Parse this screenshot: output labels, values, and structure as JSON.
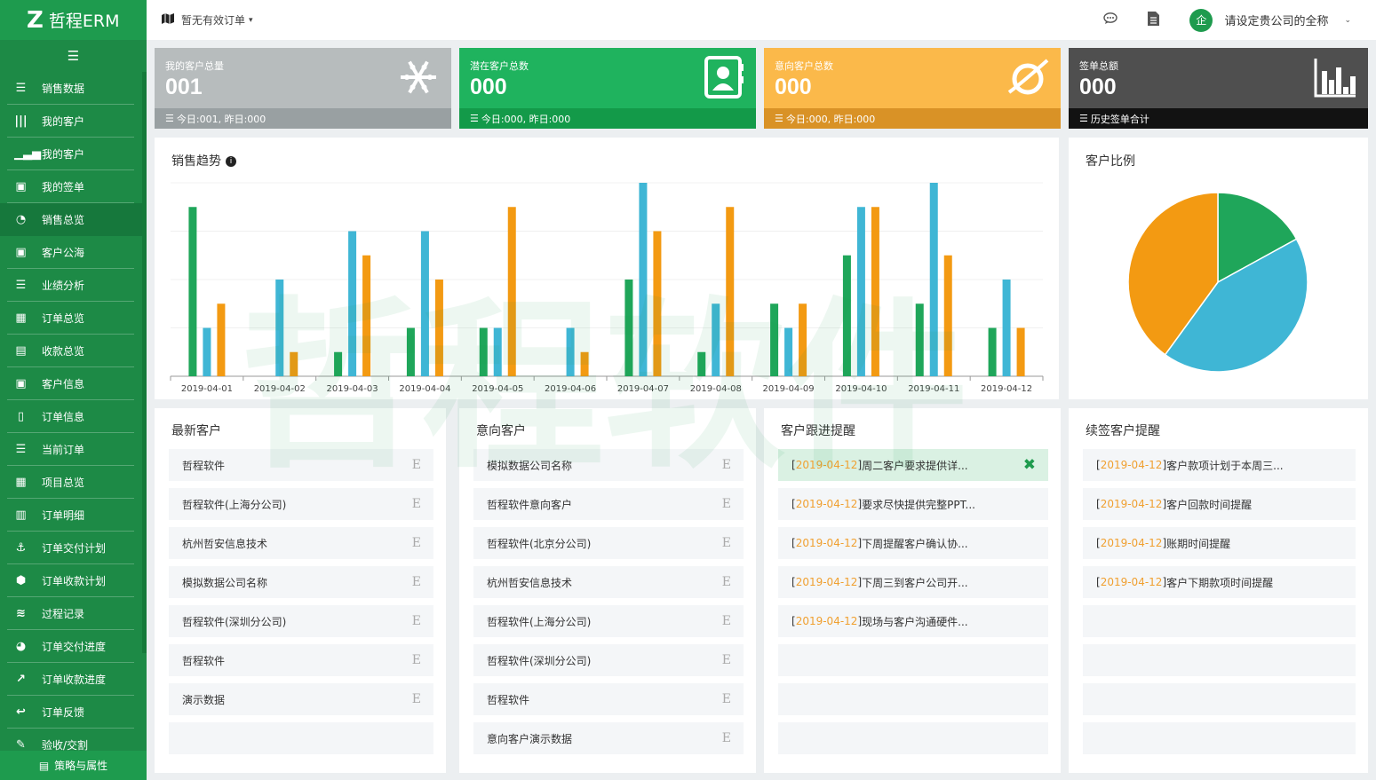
{
  "app": {
    "logo": "Z",
    "name": "哲程ERM",
    "menu_toggle_icon": "list-indent-icon"
  },
  "sidebar": {
    "items": [
      {
        "label": "销售数据",
        "icon": "bars-icon",
        "glyph": "☰",
        "active": false
      },
      {
        "label": "我的客户",
        "icon": "columns-icon",
        "glyph": "|||",
        "active": false
      },
      {
        "label": "我的客户",
        "icon": "bar-chart-icon",
        "glyph": "▁▃▅",
        "active": false
      },
      {
        "label": "我的签单",
        "icon": "contact-book-icon",
        "glyph": "▣",
        "active": false
      },
      {
        "label": "销售总览",
        "icon": "pie-icon",
        "glyph": "◔",
        "active": true
      },
      {
        "label": "客户公海",
        "icon": "contact-book-icon",
        "glyph": "▣",
        "active": false
      },
      {
        "label": "业绩分析",
        "icon": "bars-icon",
        "glyph": "☰",
        "active": false
      },
      {
        "label": "订单总览",
        "icon": "grid-list-icon",
        "glyph": "▦",
        "active": false
      },
      {
        "label": "收款总览",
        "icon": "list-box-icon",
        "glyph": "▤",
        "active": false
      },
      {
        "label": "客户信息",
        "icon": "contact-book-icon",
        "glyph": "▣",
        "active": false
      },
      {
        "label": "订单信息",
        "icon": "file-icon",
        "glyph": "▯",
        "active": false
      },
      {
        "label": "当前订单",
        "icon": "bars-icon",
        "glyph": "☰",
        "active": false
      },
      {
        "label": "项目总览",
        "icon": "grid-list-icon",
        "glyph": "▦",
        "active": false
      },
      {
        "label": "订单明细",
        "icon": "calculator-icon",
        "glyph": "▥",
        "active": false
      },
      {
        "label": "订单交付计划",
        "icon": "anchor-icon",
        "glyph": "⚓",
        "active": false
      },
      {
        "label": "订单收款计划",
        "icon": "cube-icon",
        "glyph": "⬢",
        "active": false
      },
      {
        "label": "过程记录",
        "icon": "database-icon",
        "glyph": "≋",
        "active": false
      },
      {
        "label": "订单交付进度",
        "icon": "pie-icon",
        "glyph": "◕",
        "active": false
      },
      {
        "label": "订单收款进度",
        "icon": "line-chart-icon",
        "glyph": "↗",
        "active": false
      },
      {
        "label": "订单反馈",
        "icon": "reply-icon",
        "glyph": "↩",
        "active": false
      },
      {
        "label": "验收/交割",
        "icon": "edit-icon",
        "glyph": "✎",
        "active": false
      }
    ],
    "footer": {
      "label": "策略与属性",
      "icon": "list-box-icon",
      "glyph": "▤"
    }
  },
  "topbar": {
    "order_status": "暂无有效订单",
    "order_icon": "map-icon",
    "chat_icon": "chat-icon",
    "doc_icon": "document-icon",
    "avatar": "企",
    "company": "请设定贵公司的全称"
  },
  "stats": [
    {
      "label": "我的客户总量",
      "value": "001",
      "footer": "今日:001, 昨日:000",
      "icon": "snowflake-icon",
      "color": "#b7bcbd",
      "footer_color": "#99a0a2"
    },
    {
      "label": "潜在客户总数",
      "value": "000",
      "footer": "今日:000, 昨日:000",
      "icon": "contact-card-icon",
      "color": "#1fb35e",
      "footer_color": "#139a49"
    },
    {
      "label": "意向客户总数",
      "value": "000",
      "footer": "今日:000, 昨日:000",
      "icon": "planet-icon",
      "color": "#fbb94a",
      "footer_color": "#d99226"
    },
    {
      "label": "签单总额",
      "value": "000",
      "footer": "历史签单合计",
      "icon": "bar-chart-icon",
      "color": "#4f4f4f",
      "footer_color": "#121212"
    }
  ],
  "trend": {
    "title": "销售趋势",
    "info_icon": "info-icon"
  },
  "chart_data": [
    {
      "type": "bar",
      "title": "销售趋势",
      "categories": [
        "2019-04-01",
        "2019-04-02",
        "2019-04-03",
        "2019-04-04",
        "2019-04-05",
        "2019-04-06",
        "2019-04-07",
        "2019-04-08",
        "2019-04-09",
        "2019-04-10",
        "2019-04-11",
        "2019-04-12"
      ],
      "series": [
        {
          "color": "#1fa65a",
          "values": [
            7,
            0,
            1,
            2,
            2,
            0,
            4,
            1,
            3,
            5,
            3,
            2
          ]
        },
        {
          "color": "#3fb6d5",
          "values": [
            2,
            4,
            6,
            6,
            2,
            2,
            8,
            3,
            2,
            7,
            8,
            4
          ]
        },
        {
          "color": "#f39a12",
          "values": [
            3,
            1,
            5,
            4,
            7,
            1,
            6,
            7,
            3,
            7,
            5,
            2
          ]
        }
      ],
      "ylim": [
        0,
        8
      ]
    },
    {
      "type": "pie",
      "title": "客户比例",
      "values": [
        17,
        43,
        40
      ],
      "colors": [
        "#1fa65a",
        "#3fb6d5",
        "#f39a12"
      ]
    }
  ],
  "pie": {
    "title": "客户比例"
  },
  "lists": [
    {
      "title": "最新客户",
      "kind": "e",
      "rows": [
        "哲程软件",
        "哲程软件(上海分公司)",
        "杭州哲安信息技术",
        "模拟数据公司名称",
        "哲程软件(深圳分公司)",
        "哲程软件",
        "演示数据",
        ""
      ]
    },
    {
      "title": "意向客户",
      "kind": "e",
      "rows": [
        "模拟数据公司名称",
        "哲程软件意向客户",
        "哲程软件(北京分公司)",
        "杭州哲安信息技术",
        "哲程软件(上海分公司)",
        "哲程软件(深圳分公司)",
        "哲程软件",
        "意向客户演示数据"
      ]
    },
    {
      "title": "客户跟进提醒",
      "kind": "dated",
      "rows": [
        {
          "date": "2019-04-12",
          "text": "周二客户要求提供详...",
          "highlight": true
        },
        {
          "date": "2019-04-12",
          "text": "要求尽快提供完整PPT..."
        },
        {
          "date": "2019-04-12",
          "text": "下周提醒客户确认协..."
        },
        {
          "date": "2019-04-12",
          "text": "下周三到客户公司开..."
        },
        {
          "date": "2019-04-12",
          "text": "现场与客户沟通硬件..."
        },
        {
          "date": "",
          "text": ""
        },
        {
          "date": "",
          "text": ""
        },
        {
          "date": "",
          "text": ""
        }
      ]
    },
    {
      "title": "续签客户提醒",
      "kind": "dated",
      "rows": [
        {
          "date": "2019-04-12",
          "text": "客户款项计划于本周三..."
        },
        {
          "date": "2019-04-12",
          "text": "客户回款时间提醒"
        },
        {
          "date": "2019-04-12",
          "text": "账期时间提醒"
        },
        {
          "date": "2019-04-12",
          "text": "客户下期款项时间提醒"
        },
        {
          "date": "",
          "text": ""
        },
        {
          "date": "",
          "text": ""
        },
        {
          "date": "",
          "text": ""
        },
        {
          "date": "",
          "text": ""
        }
      ]
    }
  ],
  "row_end_glyph": "E",
  "close_icon_glyph": "✖",
  "watermark": "哲程软件"
}
